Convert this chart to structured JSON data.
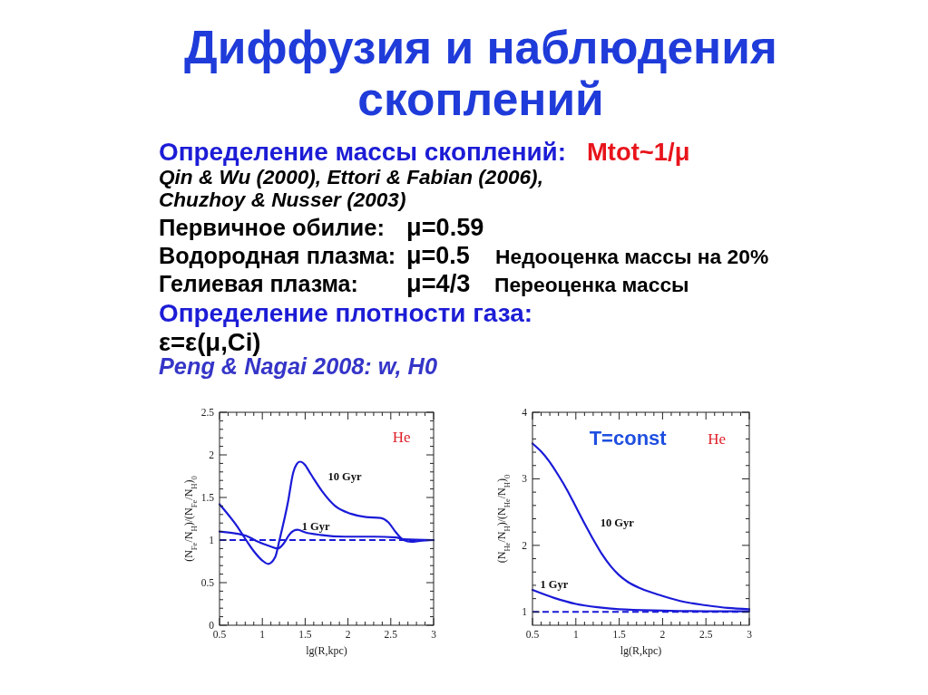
{
  "chart_data": [
    {
      "type": "other",
      "title": "Диффузия и наблюдения\nскоплений",
      "annotations": [
        "Определение массы скоплений:",
        "Mtot~1/μ",
        "Qin & Wu (2000), Ettori & Fabian (2006),",
        "Chuzhoy & Nusser (2003)",
        "Первичное обилие:",
        "μ=0.59",
        "Водородная плазма:",
        "μ=0.5",
        "Недооценка массы на 20%",
        "Гелиевая плазма:",
        "μ=4/3",
        "Переоценка массы",
        "Определение плотности газа:",
        "ε=ε(μ,Ci)",
        "Peng & Nagai 2008: w, H0"
      ]
    },
    {
      "type": "line",
      "xlabel": "lg(R,kpc)",
      "ylabel": "(N$_{Fe}$/N$_{H}$)/(N$_{Fe}$/N$_{H}$)$_{0}$",
      "annotations": [
        "He"
      ],
      "xlim": [
        0.5,
        3
      ],
      "ylim": [
        0,
        2.5
      ],
      "xticks": [
        0.5,
        {
          "value": 0.6,
          "label": null
        },
        {
          "value": 0.7,
          "label": null
        },
        {
          "value": 0.8,
          "label": null
        },
        {
          "value": 0.9,
          "label": null
        },
        1,
        {
          "value": 1.1,
          "label": null
        },
        {
          "value": 1.2,
          "label": null
        },
        {
          "value": 1.3,
          "label": null
        },
        {
          "value": 1.4,
          "label": null
        },
        1.5,
        {
          "value": 1.6,
          "label": null
        },
        {
          "value": 1.7,
          "label": null
        },
        {
          "value": 1.8,
          "label": null
        },
        {
          "value": 1.9,
          "label": null
        },
        2,
        {
          "value": 2.1,
          "label": null
        },
        {
          "value": 2.2,
          "label": null
        },
        {
          "value": 2.3,
          "label": null
        },
        {
          "value": 2.4,
          "label": null
        },
        2.5,
        {
          "value": 2.6,
          "label": null
        },
        {
          "value": 2.7,
          "label": null
        },
        {
          "value": 2.8,
          "label": null
        },
        {
          "value": 2.9,
          "label": null
        },
        3
      ],
      "yticks": [
        0,
        {
          "value": 0.1,
          "label": null
        },
        {
          "value": 0.2,
          "label": null
        },
        {
          "value": 0.3,
          "label": null
        },
        {
          "value": 0.4,
          "label": null
        },
        0.5,
        {
          "value": 0.6,
          "label": null
        },
        {
          "value": 0.7,
          "label": null
        },
        {
          "value": 0.8,
          "label": null
        },
        {
          "value": 0.9,
          "label": null
        },
        1,
        {
          "value": 1.1,
          "label": null
        },
        {
          "value": 1.2,
          "label": null
        },
        {
          "value": 1.3,
          "label": null
        },
        {
          "value": 1.4,
          "label": null
        },
        1.5,
        {
          "value": 1.6,
          "label": null
        },
        {
          "value": 1.7,
          "label": null
        },
        {
          "value": 1.8,
          "label": null
        },
        {
          "value": 1.9,
          "label": null
        },
        2,
        {
          "value": 2.1,
          "label": null
        },
        {
          "value": 2.2,
          "label": null
        },
        {
          "value": 2.3,
          "label": null
        },
        {
          "value": 2.4,
          "label": null
        },
        2.5
      ],
      "ref_lines": [
        {
          "axis": "y",
          "value": 1,
          "color": "#1a1ad8",
          "line_style": "dashed"
        }
      ],
      "series": [
        {
          "name": "10 Gyr",
          "color": "#1a1ad8",
          "x": [
            0.5,
            0.6,
            0.7,
            0.81,
            0.9,
            1.0,
            1.07,
            1.15,
            1.2,
            1.3,
            1.36,
            1.4,
            1.44,
            1.5,
            1.55,
            1.6,
            1.7,
            1.85,
            2.03,
            2.21,
            2.38,
            2.47,
            2.56,
            2.65,
            2.74,
            2.84,
            3.0
          ],
          "values": [
            1.42,
            1.3,
            1.17,
            1.0,
            0.87,
            0.76,
            0.72,
            0.8,
            1.0,
            1.45,
            1.79,
            1.89,
            1.92,
            1.88,
            1.8,
            1.72,
            1.57,
            1.4,
            1.31,
            1.27,
            1.26,
            1.21,
            1.09,
            1.0,
            0.98,
            0.99,
            1.0
          ]
        },
        {
          "name": "1 Gyr",
          "color": "#1a1ad8",
          "x": [
            0.5,
            0.81,
            0.93,
            1.08,
            1.18,
            1.25,
            1.32,
            1.41,
            1.5,
            1.68,
            1.96,
            2.31,
            2.56,
            2.65,
            3.0
          ],
          "values": [
            1.1,
            1.05,
            0.99,
            0.93,
            0.9,
            0.96,
            1.07,
            1.12,
            1.09,
            1.06,
            1.04,
            1.04,
            1.03,
            1.01,
            1.0
          ]
        }
      ]
    },
    {
      "type": "line",
      "xlabel": "lg(R,kpc)",
      "ylabel": "(N$_{He}$/N$_{H}$)/(N$_{He}$/N$_{H}$)$_{0}$",
      "annotations": [
        "T=const",
        "He"
      ],
      "xlim": [
        0.5,
        3
      ],
      "ylim": [
        0.8,
        4
      ],
      "xticks": [
        0.5,
        {
          "value": 0.6,
          "label": null
        },
        {
          "value": 0.7,
          "label": null
        },
        {
          "value": 0.8,
          "label": null
        },
        {
          "value": 0.9,
          "label": null
        },
        1,
        {
          "value": 1.1,
          "label": null
        },
        {
          "value": 1.2,
          "label": null
        },
        {
          "value": 1.3,
          "label": null
        },
        {
          "value": 1.4,
          "label": null
        },
        1.5,
        {
          "value": 1.6,
          "label": null
        },
        {
          "value": 1.7,
          "label": null
        },
        {
          "value": 1.8,
          "label": null
        },
        {
          "value": 1.9,
          "label": null
        },
        2,
        {
          "value": 2.1,
          "label": null
        },
        {
          "value": 2.2,
          "label": null
        },
        {
          "value": 2.3,
          "label": null
        },
        {
          "value": 2.4,
          "label": null
        },
        2.5,
        {
          "value": 2.6,
          "label": null
        },
        {
          "value": 2.7,
          "label": null
        },
        {
          "value": 2.8,
          "label": null
        },
        {
          "value": 2.9,
          "label": null
        },
        3
      ],
      "yticks": [
        1,
        {
          "value": 1.2,
          "label": null
        },
        {
          "value": 1.4,
          "label": null
        },
        {
          "value": 1.6,
          "label": null
        },
        {
          "value": 1.8,
          "label": null
        },
        2,
        {
          "value": 2.2,
          "label": null
        },
        {
          "value": 2.4,
          "label": null
        },
        {
          "value": 2.6,
          "label": null
        },
        {
          "value": 2.8,
          "label": null
        },
        3,
        {
          "value": 3.2,
          "label": null
        },
        {
          "value": 3.4,
          "label": null
        },
        {
          "value": 3.6,
          "label": null
        },
        {
          "value": 3.8,
          "label": null
        },
        4
      ],
      "ref_lines": [
        {
          "axis": "y",
          "value": 1,
          "color": "#1a1ad8",
          "line_style": "dashed"
        }
      ],
      "series": [
        {
          "name": "10 Gyr",
          "color": "#1a1ad8",
          "x": [
            0.5,
            0.6,
            0.7,
            0.8,
            0.9,
            1.0,
            1.1,
            1.2,
            1.3,
            1.4,
            1.5,
            1.6,
            1.75,
            2.0,
            2.25,
            2.5,
            2.75,
            3.0
          ],
          "values": [
            3.53,
            3.41,
            3.25,
            3.05,
            2.83,
            2.58,
            2.33,
            2.09,
            1.87,
            1.69,
            1.55,
            1.45,
            1.35,
            1.24,
            1.15,
            1.1,
            1.06,
            1.04
          ]
        },
        {
          "name": "1 Gyr",
          "color": "#1a1ad8",
          "x": [
            0.5,
            0.75,
            1.0,
            1.25,
            1.5,
            2.0,
            2.5,
            3.0
          ],
          "values": [
            1.33,
            1.21,
            1.12,
            1.07,
            1.04,
            1.02,
            1.01,
            1.01
          ]
        }
      ]
    }
  ]
}
